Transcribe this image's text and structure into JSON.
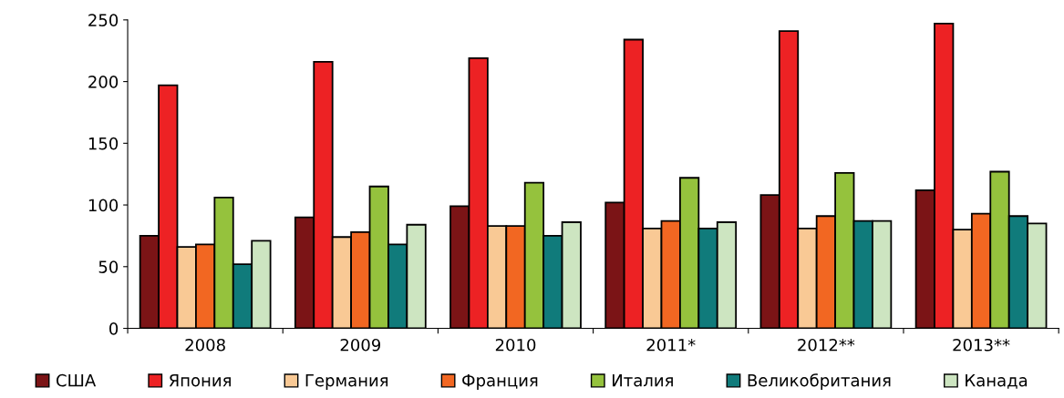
{
  "chart_data": {
    "type": "bar",
    "categories": [
      "2008",
      "2009",
      "2010",
      "2011*",
      "2012**",
      "2013**"
    ],
    "ylim": [
      0,
      250
    ],
    "yticks": [
      0,
      50,
      100,
      150,
      200,
      250
    ],
    "grid": false,
    "legend": "bottom",
    "series": [
      {
        "name": "США",
        "color": "#7b1416",
        "values": [
          75,
          90,
          99,
          102,
          108,
          112
        ]
      },
      {
        "name": "Япония",
        "color": "#ed2224",
        "values": [
          197,
          216,
          219,
          234,
          241,
          247
        ]
      },
      {
        "name": "Германия",
        "color": "#f9c995",
        "values": [
          66,
          74,
          83,
          81,
          81,
          80
        ]
      },
      {
        "name": "Франция",
        "color": "#f26722",
        "values": [
          68,
          78,
          83,
          87,
          91,
          93
        ]
      },
      {
        "name": "Италия",
        "color": "#95c23d",
        "values": [
          106,
          115,
          118,
          122,
          126,
          127
        ]
      },
      {
        "name": "Великобритания",
        "color": "#107b7b",
        "values": [
          52,
          68,
          75,
          81,
          87,
          91
        ]
      },
      {
        "name": "Канада",
        "color": "#cde5c1",
        "values": [
          71,
          84,
          86,
          86,
          87,
          85
        ]
      }
    ]
  }
}
